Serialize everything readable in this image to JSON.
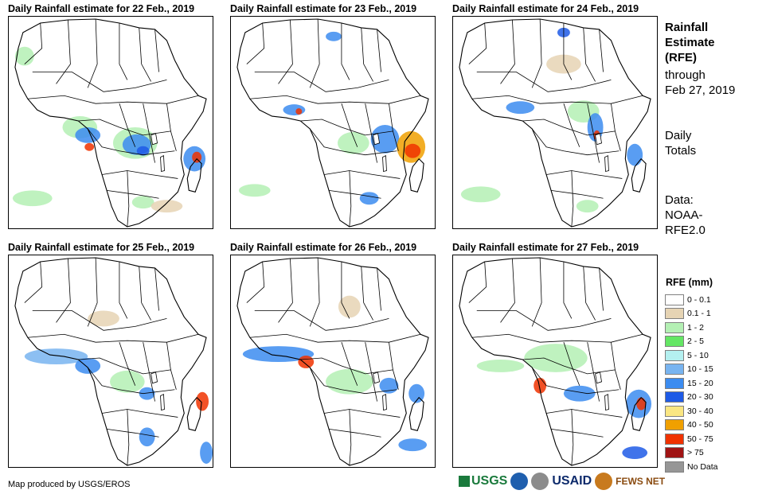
{
  "panels": [
    {
      "title": "Daily Rainfall estimate for 22 Feb., 2019"
    },
    {
      "title": "Daily Rainfall estimate for 23 Feb., 2019"
    },
    {
      "title": "Daily Rainfall estimate for 24 Feb., 2019"
    },
    {
      "title": "Daily Rainfall estimate for 25 Feb., 2019"
    },
    {
      "title": "Daily Rainfall estimate for 26 Feb., 2019"
    },
    {
      "title": "Daily Rainfall estimate for 27 Feb., 2019"
    }
  ],
  "sidebar": {
    "title_lines": [
      "Rainfall",
      "Estimate",
      "(RFE)"
    ],
    "through_line1": "through",
    "through_line2": "Feb 27, 2019",
    "totals_line1": "Daily",
    "totals_line2": "Totals",
    "data_line1": "Data:",
    "data_line2": "NOAA-",
    "data_line3": "RFE2.0"
  },
  "legend": {
    "title": "RFE (mm)",
    "items": [
      {
        "label": "0 - 0.1",
        "color": "#ffffff"
      },
      {
        "label": "0.1 - 1",
        "color": "#e6d4b4"
      },
      {
        "label": "1 - 2",
        "color": "#b4f0b4"
      },
      {
        "label": "2 - 5",
        "color": "#64e664"
      },
      {
        "label": "5 - 10",
        "color": "#b4f0f0"
      },
      {
        "label": "10 - 15",
        "color": "#78b4f0"
      },
      {
        "label": "15 - 20",
        "color": "#3c8cf0"
      },
      {
        "label": "20 - 30",
        "color": "#1e5ae6"
      },
      {
        "label": "30 - 40",
        "color": "#fae682"
      },
      {
        "label": "40 - 50",
        "color": "#f0a000"
      },
      {
        "label": "50 - 75",
        "color": "#f03200"
      },
      {
        "label": "> 75",
        "color": "#a01414"
      },
      {
        "label": "No Data",
        "color": "#969696"
      }
    ]
  },
  "footer": {
    "credit": "Map produced by USGS/EROS",
    "logo_usgs": "USGS",
    "logo_usaid": "USAID",
    "logo_fewsnet": "FEWS NET"
  }
}
